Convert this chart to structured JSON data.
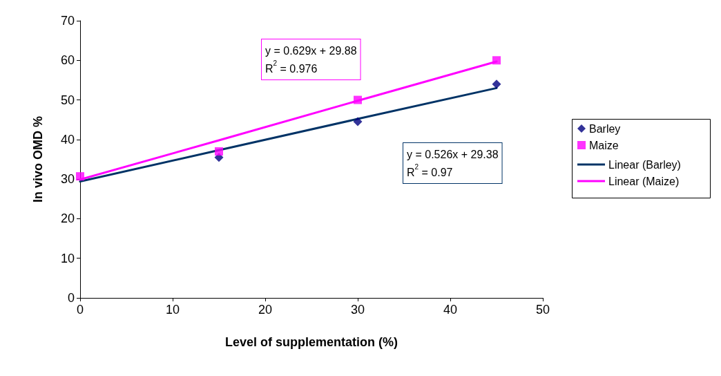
{
  "chart_data": {
    "type": "scatter",
    "xlabel": "Level of supplementation (%)",
    "ylabel": "In vivo OMD %",
    "x": [
      0,
      15,
      30,
      45
    ],
    "series": [
      {
        "name": "Barley",
        "color": "#000080",
        "marker": "diamond",
        "values": [
          null,
          35.5,
          44.5,
          54
        ]
      },
      {
        "name": "Maize",
        "color": "#ff00ff",
        "marker": "square",
        "values": [
          30.7,
          37,
          50,
          60
        ]
      },
      {
        "name": "Linear (Barley)",
        "type": "line",
        "color": "#003366",
        "marker": "none",
        "values": [
          29.4,
          37.3,
          45.2,
          53
        ]
      },
      {
        "name": "Linear (Maize)",
        "type": "line",
        "color": "#ff00ff",
        "marker": "none",
        "values": [
          29.9,
          39.8,
          49.8,
          59.7
        ]
      }
    ],
    "annotations": [
      "y = 0.629x + 29.88\nR$^{2}$ = 0.976",
      "y = 0.526x + 29.38\nR$^{2}$ = 0.97"
    ],
    "xlim": [
      0,
      50
    ],
    "xticks": [
      0,
      10,
      20,
      30,
      40,
      50
    ],
    "ylim": [
      0,
      70
    ],
    "yticks": [
      0,
      10,
      20,
      30,
      40,
      50,
      60,
      70
    ],
    "grid": false,
    "legend": "right"
  }
}
